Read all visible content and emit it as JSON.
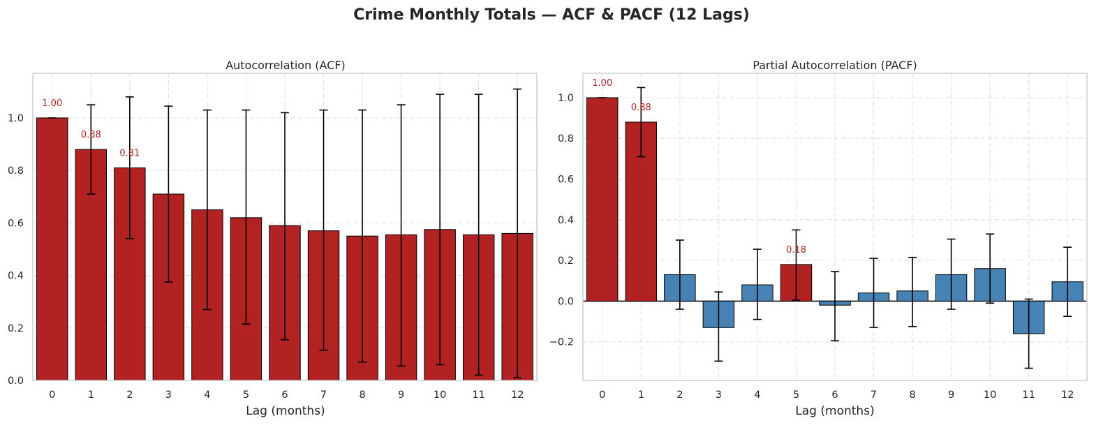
{
  "suptitle": "Crime Monthly Totals — ACF & PACF (12 Lags)",
  "colors": {
    "significant": "#b22222",
    "normal": "#4682b4",
    "edge": "#000000"
  },
  "chart_data": [
    {
      "type": "bar",
      "title": "Autocorrelation (ACF)",
      "xlabel": "Lag (months)",
      "ylabel": "",
      "categories": [
        "0",
        "1",
        "2",
        "3",
        "4",
        "5",
        "6",
        "7",
        "8",
        "9",
        "10",
        "11",
        "12"
      ],
      "values": [
        1.0,
        0.88,
        0.81,
        0.71,
        0.65,
        0.62,
        0.59,
        0.57,
        0.55,
        0.555,
        0.575,
        0.555,
        0.56
      ],
      "err_low": [
        1.0,
        0.71,
        0.54,
        0.375,
        0.27,
        0.215,
        0.155,
        0.115,
        0.07,
        0.055,
        0.06,
        0.02,
        0.01
      ],
      "err_high": [
        1.0,
        1.05,
        1.08,
        1.045,
        1.03,
        1.03,
        1.02,
        1.03,
        1.03,
        1.05,
        1.09,
        1.09,
        1.11
      ],
      "significant": [
        true,
        true,
        true,
        true,
        true,
        true,
        true,
        true,
        true,
        true,
        true,
        true,
        true
      ],
      "labels": [
        "1.00",
        "0.88",
        "0.81",
        "",
        "",
        "",
        "",
        "",
        "",
        "",
        "",
        "",
        ""
      ],
      "ylim": [
        0,
        1.17
      ],
      "yticks": [
        0.0,
        0.2,
        0.4,
        0.6,
        0.8,
        1.0
      ],
      "ytick_labels": [
        "0.0",
        "0.2",
        "0.4",
        "0.6",
        "0.8",
        "1.0"
      ],
      "grid": true
    },
    {
      "type": "bar",
      "title": "Partial Autocorrelation (PACF)",
      "xlabel": "Lag (months)",
      "ylabel": "",
      "categories": [
        "0",
        "1",
        "2",
        "3",
        "4",
        "5",
        "6",
        "7",
        "8",
        "9",
        "10",
        "11",
        "12"
      ],
      "values": [
        1.0,
        0.88,
        0.13,
        -0.13,
        0.08,
        0.18,
        -0.02,
        0.04,
        0.05,
        0.13,
        0.16,
        -0.16,
        0.095
      ],
      "err_low": [
        1.0,
        0.71,
        -0.04,
        -0.295,
        -0.09,
        0.005,
        -0.195,
        -0.13,
        -0.125,
        -0.04,
        -0.01,
        -0.33,
        -0.075
      ],
      "err_high": [
        1.0,
        1.05,
        0.3,
        0.045,
        0.255,
        0.35,
        0.145,
        0.21,
        0.215,
        0.305,
        0.33,
        0.01,
        0.265
      ],
      "significant": [
        true,
        true,
        false,
        false,
        false,
        true,
        false,
        false,
        false,
        false,
        false,
        false,
        false
      ],
      "labels": [
        "1.00",
        "0.88",
        "",
        "",
        "",
        "0.18",
        "",
        "",
        "",
        "",
        "",
        "",
        ""
      ],
      "ylim": [
        -0.39,
        1.12
      ],
      "yticks": [
        -0.2,
        0.0,
        0.2,
        0.4,
        0.6,
        0.8,
        1.0
      ],
      "ytick_labels": [
        "−0.2",
        "0.0",
        "0.2",
        "0.4",
        "0.6",
        "0.8",
        "1.0"
      ],
      "grid": true,
      "zero_line": true
    }
  ]
}
